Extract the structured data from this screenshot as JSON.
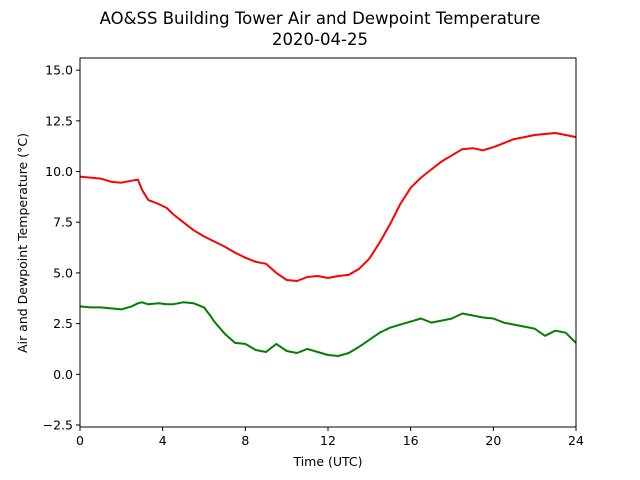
{
  "chart_data": {
    "type": "line",
    "title": "AO&SS Building Tower Air and Dewpoint Temperature",
    "subtitle": "2020-04-25",
    "xlabel": "Time (UTC)",
    "ylabel": "Air and Dewpoint Temperature (°C)",
    "xlim": [
      0,
      24
    ],
    "ylim": [
      -2.6,
      15.6
    ],
    "x_ticks": [
      0,
      4,
      8,
      12,
      16,
      20,
      24
    ],
    "x_tick_labels": [
      "0",
      "4",
      "8",
      "12",
      "16",
      "20",
      "24"
    ],
    "y_ticks": [
      -2.5,
      0.0,
      2.5,
      5.0,
      7.5,
      10.0,
      12.5,
      15.0
    ],
    "y_tick_labels": [
      "−2.5",
      "0.0",
      "2.5",
      "5.0",
      "7.5",
      "10.0",
      "12.5",
      "15.0"
    ],
    "grid": false,
    "legend": "none",
    "series": [
      {
        "color": "#ff0000",
        "x": [
          0,
          0.5,
          1,
          1.5,
          2,
          2.5,
          2.8,
          3.0,
          3.3,
          3.8,
          4.2,
          4.5,
          5.0,
          5.5,
          6.0,
          6.5,
          7.0,
          7.5,
          8.0,
          8.5,
          9.0,
          9.5,
          10.0,
          10.5,
          11.0,
          11.5,
          12.0,
          12.5,
          13.0,
          13.5,
          14.0,
          14.5,
          15.0,
          15.5,
          16.0,
          16.5,
          17.0,
          17.5,
          18.0,
          18.5,
          19.0,
          19.5,
          20.0,
          20.5,
          21.0,
          21.5,
          22.0,
          22.5,
          23.0,
          23.5,
          24.0
        ],
        "values": [
          9.75,
          9.7,
          9.65,
          9.5,
          9.45,
          9.55,
          9.6,
          9.1,
          8.6,
          8.4,
          8.2,
          7.9,
          7.5,
          7.1,
          6.8,
          6.55,
          6.3,
          6.0,
          5.75,
          5.55,
          5.45,
          5.0,
          4.65,
          4.6,
          4.8,
          4.85,
          4.75,
          4.85,
          4.9,
          5.2,
          5.7,
          6.5,
          7.4,
          8.4,
          9.2,
          9.7,
          10.1,
          10.5,
          10.8,
          11.1,
          11.15,
          11.05,
          11.2,
          11.4,
          11.6,
          11.7,
          11.8,
          11.85,
          11.9,
          11.8,
          11.7
        ]
      },
      {
        "color": "#008000",
        "x": [
          0,
          0.5,
          1,
          1.5,
          2,
          2.5,
          2.8,
          3.0,
          3.3,
          3.8,
          4.2,
          4.5,
          5.0,
          5.5,
          6.0,
          6.3,
          6.5,
          7.0,
          7.5,
          8.0,
          8.5,
          9.0,
          9.5,
          10.0,
          10.5,
          11.0,
          11.5,
          12.0,
          12.5,
          13.0,
          13.5,
          14.0,
          14.5,
          15.0,
          15.5,
          16.0,
          16.5,
          17.0,
          17.5,
          18.0,
          18.5,
          19.0,
          19.5,
          20.0,
          20.5,
          21.0,
          21.5,
          22.0,
          22.5,
          23.0,
          23.5,
          24.0
        ],
        "values": [
          3.35,
          3.3,
          3.3,
          3.25,
          3.2,
          3.35,
          3.5,
          3.55,
          3.45,
          3.5,
          3.45,
          3.45,
          3.55,
          3.5,
          3.3,
          2.9,
          2.6,
          2.0,
          1.55,
          1.5,
          1.2,
          1.1,
          1.5,
          1.15,
          1.05,
          1.25,
          1.1,
          0.95,
          0.9,
          1.05,
          1.35,
          1.7,
          2.05,
          2.3,
          2.45,
          2.6,
          2.75,
          2.55,
          2.65,
          2.75,
          3.0,
          2.9,
          2.8,
          2.75,
          2.55,
          2.45,
          2.35,
          2.25,
          1.9,
          2.15,
          2.05,
          1.55
        ]
      }
    ]
  }
}
